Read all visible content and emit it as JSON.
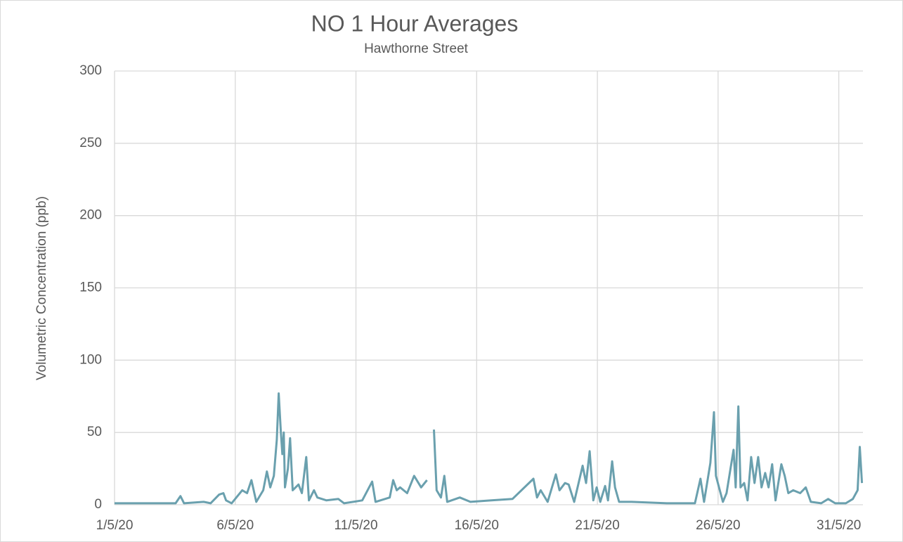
{
  "chart_data": {
    "type": "line",
    "title": "NO 1 Hour Averages",
    "subtitle": "Hawthorne  Street",
    "y_label": "Volumetric Concentration  (ppb)",
    "xlim": [
      1,
      32
    ],
    "ylim": [
      0,
      300
    ],
    "xticks": [
      {
        "value": 1,
        "label": "1/5/20"
      },
      {
        "value": 6,
        "label": "6/5/20"
      },
      {
        "value": 11,
        "label": "11/5/20"
      },
      {
        "value": 16,
        "label": "16/5/20"
      },
      {
        "value": 21,
        "label": "21/5/20"
      },
      {
        "value": 26,
        "label": "26/5/20"
      },
      {
        "value": 31,
        "label": "31/5/20"
      }
    ],
    "yticks": [
      0,
      50,
      100,
      150,
      200,
      250,
      300
    ],
    "grid": true,
    "series": [
      {
        "name": "NO",
        "color": "#6aa0ae",
        "x": [
          1.0,
          2.08,
          3.53,
          3.73,
          3.88,
          4.69,
          4.98,
          5.33,
          5.51,
          5.62,
          5.85,
          6.29,
          6.49,
          6.67,
          6.87,
          7.16,
          7.31,
          7.45,
          7.6,
          7.72,
          7.8,
          7.89,
          7.95,
          8.01,
          8.06,
          8.18,
          8.27,
          8.38,
          8.62,
          8.76,
          8.94,
          9.05,
          9.26,
          9.4,
          9.78,
          10.27,
          10.51,
          11.26,
          11.67,
          11.81,
          12.4,
          12.54,
          12.69,
          12.83,
          13.12,
          13.41,
          13.7,
          13.94,
          14.05,
          14.23,
          14.34,
          14.52,
          14.66,
          14.78,
          15.3,
          15.74,
          16.61,
          17.48,
          18.35,
          18.5,
          18.65,
          18.94,
          19.28,
          19.43,
          19.66,
          19.81,
          20.04,
          20.39,
          20.53,
          20.68,
          20.83,
          20.97,
          21.12,
          21.32,
          21.44,
          21.61,
          21.73,
          21.9,
          22.42,
          23.88,
          25.04,
          25.27,
          25.42,
          25.68,
          25.83,
          25.91,
          26.2,
          26.35,
          26.64,
          26.73,
          26.84,
          26.93,
          27.08,
          27.22,
          27.37,
          27.51,
          27.66,
          27.8,
          27.95,
          28.09,
          28.24,
          28.38,
          28.62,
          28.76,
          28.91,
          29.11,
          29.4,
          29.63,
          29.84,
          30.27,
          30.56,
          30.85,
          31.29,
          31.58,
          31.78,
          31.87,
          31.96
        ],
        "values": [
          1,
          1,
          1,
          6,
          1,
          2,
          1,
          7,
          8,
          3,
          1,
          10,
          8,
          17,
          2,
          10,
          23,
          12,
          20,
          45,
          77,
          50,
          35,
          50,
          12,
          25,
          46,
          10,
          14,
          8,
          33,
          3,
          10,
          5,
          3,
          4,
          1,
          3,
          16,
          2,
          5,
          17,
          10,
          12,
          8,
          20,
          12,
          17,
          null,
          52,
          10,
          5,
          20,
          2,
          5,
          2,
          3,
          4,
          18,
          5,
          10,
          2,
          21,
          10,
          15,
          14,
          2,
          27,
          15,
          37,
          3,
          12,
          2,
          13,
          3,
          30,
          12,
          2,
          2,
          1,
          1,
          18,
          2,
          29,
          64,
          20,
          2,
          8,
          38,
          12,
          68,
          12,
          15,
          3,
          33,
          15,
          33,
          12,
          22,
          12,
          28,
          3,
          28,
          20,
          8,
          10,
          8,
          12,
          2,
          1,
          4,
          1,
          1,
          4,
          10,
          40,
          15
        ]
      }
    ]
  }
}
